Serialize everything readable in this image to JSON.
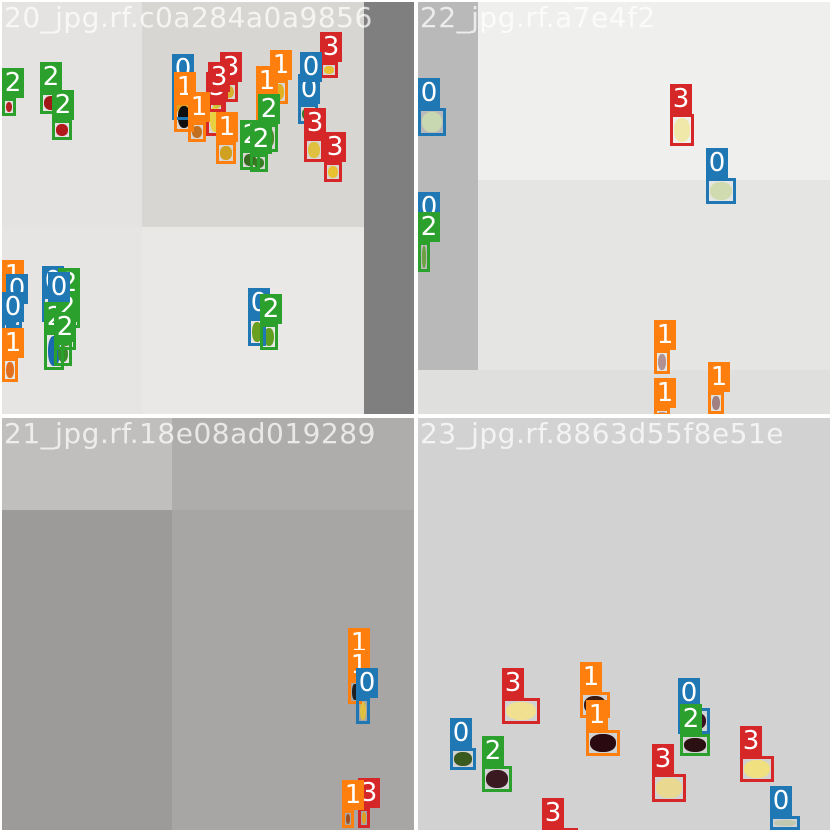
{
  "image": {
    "description_colors": {
      "class_0": "#1f77b4",
      "class_1": "#ff7f0e",
      "class_2": "#2ca02c",
      "class_3": "#d62728"
    }
  },
  "tiles": [
    {
      "title": "20_jpg.rf.c0a284a0a9856",
      "labels": [
        "2",
        "2",
        "2",
        "0",
        "3",
        "1",
        "1",
        "3",
        "1",
        "3",
        "0",
        "1",
        "2",
        "2",
        "3",
        "2",
        "1",
        "0",
        "3",
        "3",
        "1",
        "0",
        "0",
        "2",
        "2",
        "2",
        "1",
        "0",
        "2",
        "2",
        "0",
        "0"
      ]
    },
    {
      "title": "22_jpg.rf.a7e4f2",
      "labels": [
        "0",
        "3",
        "0",
        "0",
        "2",
        "1",
        "1",
        "1"
      ]
    },
    {
      "title": "21_jpg.rf.18e08ad019289",
      "labels": [
        "1",
        "1",
        "0",
        "3",
        "1"
      ]
    },
    {
      "title": "23_jpg.rf.8863d55f8e51e",
      "labels": [
        "3",
        "1",
        "1",
        "0",
        "2",
        "0",
        "2",
        "3",
        "3",
        "3",
        "0"
      ]
    }
  ]
}
